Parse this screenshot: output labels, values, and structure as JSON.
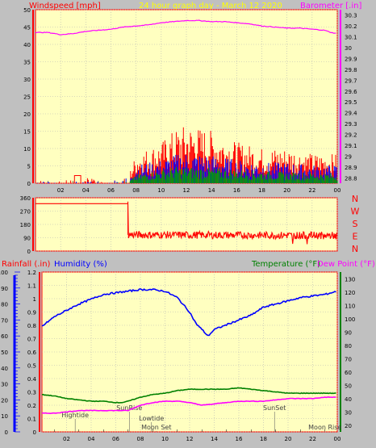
{
  "header": {
    "title": "24 hour graph day - March 12 2020",
    "wind_label": "Windspeed [mph]",
    "baro_label": "Barometer [.in]"
  },
  "colors": {
    "plot_bg": "#ffffc0",
    "grid": "#b4b4b4",
    "axis": "#ff0000",
    "wind": "#ff0000",
    "gust": "#0000ff",
    "wind_avg": "#00a000",
    "baro": "#ff00ff",
    "direction": "#ff0000",
    "humidity": "#0000ff",
    "temperature": "#008000",
    "dewpoint": "#ff00ff",
    "rain_axis": "#0000ff",
    "temp_axis": "#008000",
    "title": "#ffff00",
    "direction_text": "#ff0000"
  },
  "bottom_header": {
    "rain_label": "Rainfall (.in)",
    "humidity_label": "Humidity (%)",
    "temp_label": "Temperature (°F)",
    "dew_label": "Dew Point (°F)"
  },
  "direction_letters": [
    "N",
    "W",
    "S",
    "E",
    "N"
  ],
  "events": [
    {
      "label": "Hightide",
      "hour": 2.7
    },
    {
      "label": "SunRise",
      "hour": 7.1
    },
    {
      "label": "Lowtide",
      "hour": 8.9
    },
    {
      "label": "Moon Set",
      "hour": 9.3
    },
    {
      "label": "SunSet",
      "hour": 18.9
    },
    {
      "label": "Moon Rise",
      "hour": 23.0
    }
  ],
  "chart_data": [
    {
      "type": "line",
      "title": "24 hour graph day - March 12 2020",
      "x_ticks": [
        "02",
        "04",
        "06",
        "08",
        "10",
        "12",
        "14",
        "16",
        "18",
        "20",
        "22",
        "00"
      ],
      "y_left": {
        "label": "Windspeed [mph]",
        "ticks": [
          0,
          5,
          10,
          15,
          20,
          25,
          30,
          35,
          40,
          45,
          50
        ],
        "ylim": [
          0,
          50
        ]
      },
      "y_right": {
        "label": "Barometer [.in]",
        "ticks": [
          "28.8",
          "28.9",
          "29",
          "29.1",
          "29.2",
          "29.3",
          "29.4",
          "29.5",
          "29.6",
          "29.7",
          "29.8",
          "29.9",
          "30",
          "30.1",
          "30.2",
          "30.3"
        ],
        "ylim": [
          28.75,
          30.35
        ]
      },
      "series": [
        {
          "axis": "right",
          "hours": [
            0,
            1,
            2,
            3,
            4,
            5,
            6,
            7,
            8,
            9,
            10,
            11,
            12,
            13,
            14,
            15,
            16,
            17,
            18,
            19,
            20,
            21,
            22,
            23,
            23.5,
            24
          ],
          "values": [
            30.14,
            30.14,
            30.12,
            30.13,
            30.15,
            30.16,
            30.17,
            30.19,
            30.2,
            30.21,
            30.23,
            30.24,
            30.25,
            30.25,
            30.24,
            30.24,
            30.23,
            30.22,
            30.2,
            30.19,
            30.18,
            30.18,
            30.17,
            30.16,
            30.14,
            30.13
          ]
        },
        {
          "axis": "left",
          "hours": [
            0,
            2,
            4,
            6,
            7.5,
            8,
            10,
            11,
            12,
            14,
            16,
            18,
            20,
            22,
            24
          ],
          "values": [
            0.5,
            0.5,
            1,
            0.5,
            2,
            5,
            7,
            9,
            10,
            9,
            7,
            6,
            6,
            5,
            5
          ]
        },
        {
          "axis": "left",
          "hours": [
            0,
            2,
            4,
            6,
            7.5,
            8,
            10,
            11,
            12,
            14,
            16,
            18,
            20,
            22,
            24
          ],
          "values": [
            0.3,
            0.3,
            0.5,
            0.3,
            1.5,
            3.5,
            4.5,
            5.5,
            6,
            5.5,
            4.5,
            4,
            4,
            3.5,
            3.5
          ]
        },
        {
          "axis": "left",
          "hours": [
            0,
            2,
            4,
            6,
            7.5,
            8,
            10,
            11,
            12,
            14,
            16,
            18,
            20,
            22,
            24
          ],
          "values": [
            0,
            0,
            0,
            0,
            0.5,
            1.5,
            2.5,
            3,
            3,
            2.8,
            2.5,
            2.2,
            2,
            2,
            1.8
          ]
        }
      ]
    },
    {
      "type": "line",
      "y": {
        "ticks": [
          0,
          90,
          180,
          270,
          360
        ],
        "ylim": [
          0,
          360
        ]
      },
      "series": [
        {
          "hours": [
            0,
            7.35,
            7.35,
            24
          ],
          "values": [
            320,
            320,
            110,
            105
          ]
        }
      ]
    },
    {
      "type": "line",
      "x_ticks": [
        "02",
        "04",
        "06",
        "08",
        "10",
        "12",
        "14",
        "16",
        "18",
        "20",
        "22",
        "00"
      ],
      "y_rain": {
        "label": "Rainfall (.in)",
        "ticks": [
          "0",
          "0.1",
          "0.2",
          "0.3",
          "0.4",
          "0.5",
          "0.6",
          "0.7",
          "0.8",
          "0.9",
          "1",
          "1.1",
          "1.2"
        ],
        "ylim": [
          0,
          1.2
        ]
      },
      "y_humidity": {
        "label": "Humidity (%)",
        "ticks": [
          0,
          10,
          20,
          30,
          40,
          50,
          60,
          70,
          80,
          90,
          100
        ],
        "ylim": [
          0,
          100
        ]
      },
      "y_temp": {
        "label": "Temperature (°F)",
        "ticks": [
          20,
          30,
          40,
          50,
          60,
          70,
          80,
          90,
          100,
          110,
          120,
          130
        ],
        "ylim": [
          15,
          135
        ]
      },
      "series": [
        {
          "name": "Humidity (%)",
          "axis": "humidity",
          "hours": [
            0,
            1,
            2,
            3,
            4,
            5,
            6,
            7,
            8,
            9,
            10,
            11,
            12,
            12.5,
            13,
            13.5,
            14,
            15,
            16,
            17,
            18,
            19,
            20,
            21,
            22,
            23,
            24
          ],
          "values": [
            66,
            72,
            76,
            80,
            83,
            86,
            87,
            88,
            89,
            89,
            88,
            84,
            75,
            68,
            64,
            60,
            64,
            67,
            70,
            73,
            78,
            80,
            82,
            84,
            85,
            86,
            88
          ]
        },
        {
          "name": "Temperature (°F)",
          "axis": "temp",
          "hours": [
            0,
            1,
            2,
            3,
            4,
            5,
            6,
            6.5,
            7,
            8,
            9,
            10,
            11,
            12,
            13,
            14,
            15,
            16,
            17,
            18,
            19,
            20,
            21,
            22,
            23,
            24
          ],
          "values": [
            43,
            42,
            40,
            39,
            38,
            38,
            37,
            37,
            38,
            41,
            43,
            44,
            46,
            47,
            47,
            47,
            47,
            48,
            47,
            46,
            45,
            44,
            44,
            44,
            44,
            44
          ],
          "legend_series": false
        },
        {
          "name": "Dew Point (°F)",
          "axis": "temp",
          "hours": [
            0,
            1,
            2,
            3,
            4,
            5,
            6,
            7,
            7.5,
            8,
            9,
            10,
            11,
            12,
            13,
            14,
            15,
            16,
            17,
            18,
            19,
            20,
            21,
            22,
            23,
            24
          ],
          "values": [
            29,
            29,
            30,
            31,
            31,
            31,
            31,
            31,
            33,
            35,
            37,
            38,
            38,
            37,
            35,
            36,
            37,
            38,
            38,
            38,
            39,
            40,
            40,
            40,
            41,
            41
          ]
        }
      ]
    }
  ]
}
